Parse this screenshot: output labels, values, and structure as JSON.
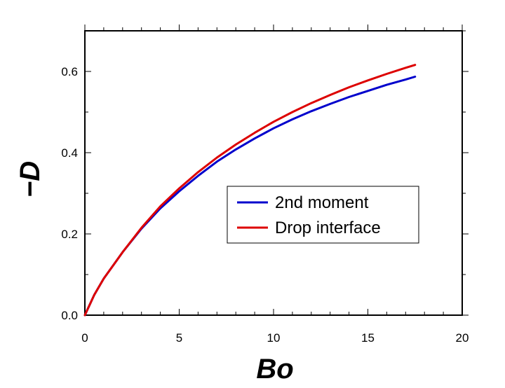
{
  "chart_data": {
    "type": "line",
    "title": "",
    "xlabel": "Bo",
    "ylabel": "−D",
    "xlim": [
      0,
      20
    ],
    "ylim": [
      0,
      0.7
    ],
    "xticks": [
      "0",
      "5",
      "10",
      "15",
      "20"
    ],
    "yticks": [
      "0.0",
      "0.2",
      "0.4",
      "0.6"
    ],
    "grid": false,
    "legend_position": "center-right",
    "series": [
      {
        "name": "2nd moment",
        "color": "#0000cc",
        "x": [
          0,
          0.5,
          1,
          2,
          3,
          4,
          5,
          6,
          7,
          8,
          9,
          10,
          11,
          12,
          13,
          14,
          15,
          16,
          17,
          17.5
        ],
        "y": [
          0,
          0.05,
          0.09,
          0.155,
          0.213,
          0.263,
          0.305,
          0.343,
          0.378,
          0.408,
          0.435,
          0.46,
          0.482,
          0.502,
          0.52,
          0.537,
          0.552,
          0.567,
          0.58,
          0.587
        ]
      },
      {
        "name": "Drop interface",
        "color": "#dd0000",
        "x": [
          0,
          0.5,
          1,
          2,
          3,
          4,
          5,
          6,
          7,
          8,
          9,
          10,
          11,
          12,
          13,
          14,
          15,
          16,
          17,
          17.5
        ],
        "y": [
          0,
          0.05,
          0.09,
          0.155,
          0.215,
          0.268,
          0.312,
          0.352,
          0.388,
          0.42,
          0.449,
          0.476,
          0.5,
          0.522,
          0.542,
          0.561,
          0.578,
          0.594,
          0.609,
          0.616
        ]
      }
    ]
  }
}
